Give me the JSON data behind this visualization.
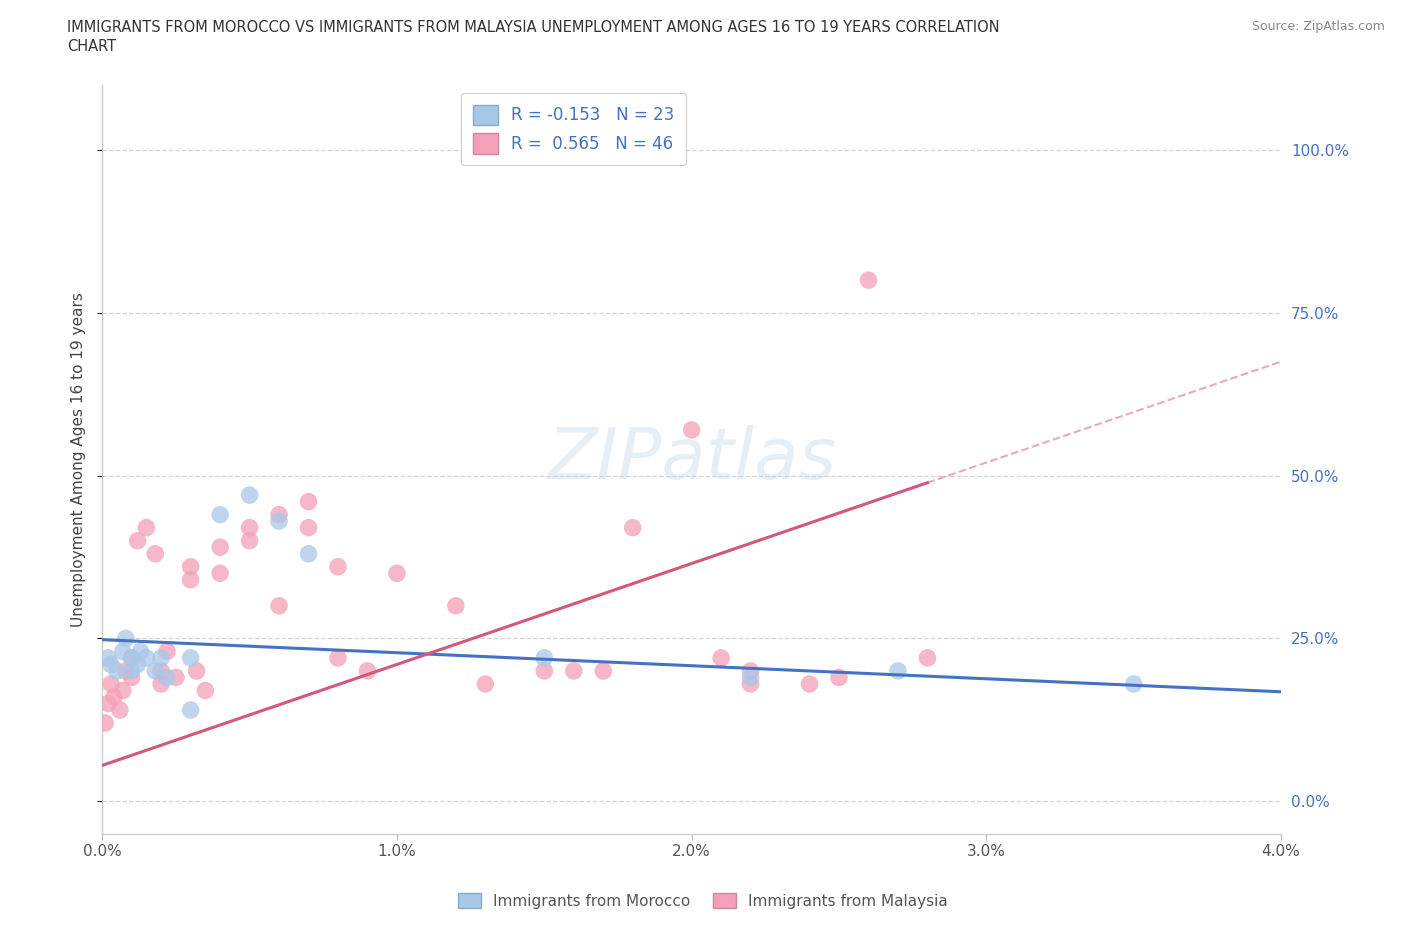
{
  "title_line1": "IMMIGRANTS FROM MOROCCO VS IMMIGRANTS FROM MALAYSIA UNEMPLOYMENT AMONG AGES 16 TO 19 YEARS CORRELATION",
  "title_line2": "CHART",
  "source": "Source: ZipAtlas.com",
  "ylabel": "Unemployment Among Ages 16 to 19 years",
  "xlim": [
    0.0,
    0.04
  ],
  "ylim": [
    -0.05,
    1.1
  ],
  "yticks": [
    0.0,
    0.25,
    0.5,
    0.75,
    1.0
  ],
  "ytick_labels": [
    "0.0%",
    "25.0%",
    "50.0%",
    "75.0%",
    "100.0%"
  ],
  "xticks": [
    0.0,
    0.01,
    0.02,
    0.03,
    0.04
  ],
  "xtick_labels": [
    "0.0%",
    "1.0%",
    "2.0%",
    "3.0%",
    "4.0%"
  ],
  "morocco_color": "#a8c8e8",
  "malaysia_color": "#f4a0b8",
  "morocco_line_color": "#4472c4",
  "malaysia_line_color": "#d45878",
  "background_color": "#ffffff",
  "grid_color": "#cccccc",
  "R_morocco": -0.153,
  "N_morocco": 23,
  "R_malaysia": 0.565,
  "N_malaysia": 46,
  "morocco_x": [
    0.0002,
    0.0003,
    0.0005,
    0.0007,
    0.0008,
    0.001,
    0.001,
    0.0012,
    0.0013,
    0.0015,
    0.0018,
    0.002,
    0.0022,
    0.003,
    0.003,
    0.004,
    0.005,
    0.006,
    0.007,
    0.015,
    0.022,
    0.027,
    0.035
  ],
  "morocco_y": [
    0.22,
    0.21,
    0.2,
    0.23,
    0.25,
    0.22,
    0.2,
    0.21,
    0.23,
    0.22,
    0.2,
    0.22,
    0.19,
    0.22,
    0.14,
    0.44,
    0.47,
    0.43,
    0.38,
    0.22,
    0.19,
    0.2,
    0.18
  ],
  "malaysia_x": [
    0.0001,
    0.0002,
    0.0003,
    0.0004,
    0.0006,
    0.0007,
    0.0008,
    0.001,
    0.001,
    0.0012,
    0.0015,
    0.0018,
    0.002,
    0.002,
    0.0022,
    0.0025,
    0.003,
    0.003,
    0.0032,
    0.0035,
    0.004,
    0.004,
    0.005,
    0.005,
    0.006,
    0.006,
    0.007,
    0.007,
    0.008,
    0.008,
    0.009,
    0.01,
    0.012,
    0.013,
    0.015,
    0.016,
    0.017,
    0.018,
    0.02,
    0.021,
    0.022,
    0.022,
    0.024,
    0.025,
    0.026,
    0.028
  ],
  "malaysia_y": [
    0.12,
    0.15,
    0.18,
    0.16,
    0.14,
    0.17,
    0.2,
    0.22,
    0.19,
    0.4,
    0.42,
    0.38,
    0.2,
    0.18,
    0.23,
    0.19,
    0.36,
    0.34,
    0.2,
    0.17,
    0.35,
    0.39,
    0.42,
    0.4,
    0.44,
    0.3,
    0.46,
    0.42,
    0.22,
    0.36,
    0.2,
    0.35,
    0.3,
    0.18,
    0.2,
    0.2,
    0.2,
    0.42,
    0.57,
    0.22,
    0.2,
    0.18,
    0.18,
    0.19,
    0.8,
    0.22
  ],
  "watermark": "ZIPatlas",
  "legend_label_morocco": "Immigrants from Morocco",
  "legend_label_malaysia": "Immigrants from Malaysia",
  "morocco_intercept": 0.248,
  "morocco_slope": -2.0,
  "malaysia_intercept": 0.055,
  "malaysia_slope": 15.5
}
